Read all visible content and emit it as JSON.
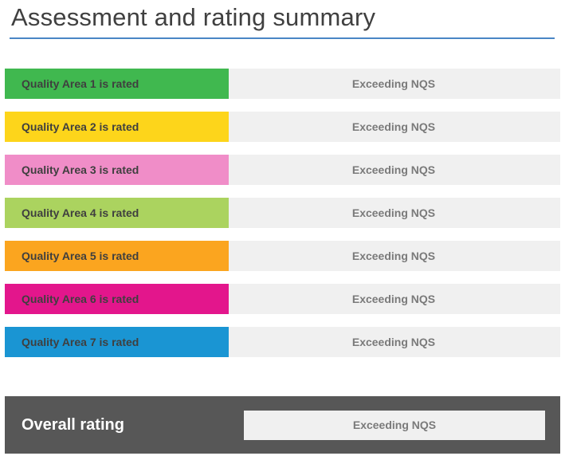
{
  "page": {
    "title": "Assessment and rating summary"
  },
  "quality_areas": [
    {
      "label": "Quality Area 1 is rated",
      "rating": "Exceeding NQS",
      "color": "#40b84f"
    },
    {
      "label": "Quality Area 2 is rated",
      "rating": "Exceeding NQS",
      "color": "#fdd51b"
    },
    {
      "label": "Quality Area 3 is rated",
      "rating": "Exceeding NQS",
      "color": "#f08dc8"
    },
    {
      "label": "Quality Area 4 is rated",
      "rating": "Exceeding NQS",
      "color": "#abd35f"
    },
    {
      "label": "Quality Area 5 is rated",
      "rating": "Exceeding NQS",
      "color": "#fba51f"
    },
    {
      "label": "Quality Area 6 is rated",
      "rating": "Exceeding NQS",
      "color": "#e3168c"
    },
    {
      "label": "Quality Area 7 is rated",
      "rating": "Exceeding NQS",
      "color": "#1a95d3"
    }
  ],
  "overall": {
    "label": "Overall rating",
    "rating": "Exceeding NQS"
  }
}
